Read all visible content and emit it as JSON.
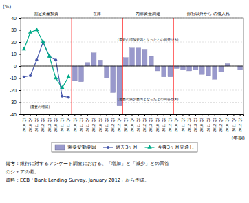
{
  "chart_data": {
    "type": "bar",
    "y_label": "(%)",
    "x_label": "(年期)",
    "ylim": [
      -40,
      40
    ],
    "yticks": [
      -40,
      -30,
      -20,
      -10,
      0,
      10,
      20,
      30,
      40
    ],
    "grid": true,
    "legend": "bottom",
    "categories": [
      "2010\nQ1",
      "2010\nQ4",
      "2011\nQ3",
      "2012\nQ2",
      "2013\nQ1",
      "2010\nQ2",
      "2011\nQ1",
      "2011\nQ4",
      "2010\nQ2",
      "2011\nQ1",
      "2011\nQ4",
      "2012\nQ3",
      "2010\nQ3",
      "2011\nQ2",
      "2012\nQ1",
      "2012\nQ4",
      "2010\nQ1",
      "2010\nQ4",
      "2011\nQ3",
      "2012\nQ2",
      "2013\nQ1",
      "2010\nQ3",
      "2011\nQ2",
      "2012\nQ1",
      "2010\nQ4",
      "2011\nQ3",
      "2012\nQ2",
      "2013\nQ1",
      "2010\nQ3",
      "2011\nQ2",
      "2012\nQ1",
      "2012\nQ4",
      "2010\nQ3",
      "2011\nQ4",
      "2012\nQ3"
    ],
    "series": [
      {
        "name": "需要変動要因",
        "type": "bar",
        "color": "#9999cc",
        "values": [
          0,
          0,
          0,
          0,
          0,
          0,
          0,
          0,
          -12,
          -13,
          3,
          11,
          5,
          -10,
          -22,
          -33,
          7,
          15,
          15,
          14,
          8,
          -4,
          -9,
          -9,
          -2,
          -3,
          -4,
          -3,
          -7,
          -8,
          -11,
          -5,
          2,
          0,
          -3
        ]
      },
      {
        "name": "過去3ヶ月",
        "type": "line",
        "color": "#4455aa",
        "marker": "circle",
        "values": [
          -9,
          -8,
          5,
          20,
          8,
          5,
          -25,
          -26,
          null,
          null,
          null,
          null,
          null,
          null,
          null,
          null,
          null,
          null,
          null,
          null,
          null,
          null,
          null,
          null,
          null,
          null,
          null,
          null,
          null,
          null,
          null,
          null,
          null,
          null,
          null
        ]
      },
      {
        "name": "今後3ヶ月見通し",
        "type": "line",
        "color": "#00aa88",
        "marker": "triangle",
        "values": [
          14,
          28,
          30,
          20,
          8,
          -10,
          -18,
          -9,
          null,
          null,
          null,
          null,
          null,
          null,
          null,
          null,
          null,
          null,
          null,
          null,
          null,
          null,
          null,
          null,
          null,
          null,
          null,
          null,
          null,
          null,
          null,
          null,
          null,
          null,
          null
        ]
      }
    ],
    "sections": [
      {
        "label": "固定資産投資",
        "from": 0,
        "to": 7
      },
      {
        "label": "在庫",
        "from": 8,
        "to": 15
      },
      {
        "label": "内部資金調達",
        "from": 16,
        "to": 23
      },
      {
        "label": "銀行以外から\nの借入れ",
        "from": 24,
        "to": 34
      }
    ],
    "annotations": [
      {
        "text": "(需要の増加要因となったとの回答が大)",
        "x": 19.5,
        "y": 22
      },
      {
        "text": "(需要の減少要因となったとの回答が大)",
        "x": 19.5,
        "y": -28
      },
      {
        "text": "(需要の増減)",
        "x": 2.5,
        "y": -34
      }
    ],
    "notes": [
      "備考：銀行に対するアンケート調査における、「増加」と「減少」との回答",
      "のシェアの差。",
      "資料：ECB「Bank Lending Survey, January 2012」から作成。"
    ]
  }
}
